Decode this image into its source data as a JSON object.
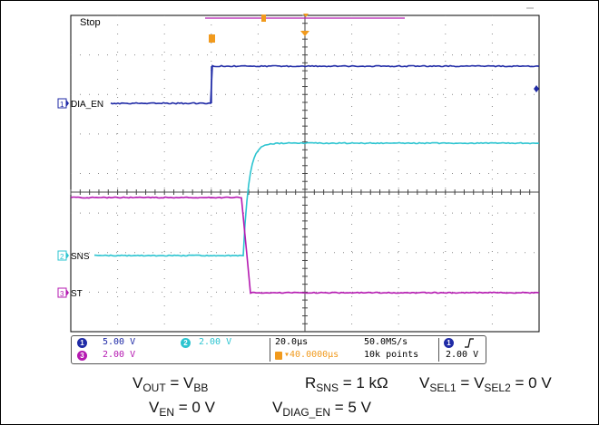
{
  "status": {
    "run_state": "Stop"
  },
  "colors": {
    "ch1": "#1f2aa6",
    "ch2": "#2cc4d0",
    "ch3": "#b51ab1",
    "trigger": "#f19a1d",
    "grid": "#8a8a8a"
  },
  "channels": [
    {
      "num": "1",
      "label": "DIA_EN",
      "scale": "5.00 V",
      "color": "#1f2aa6"
    },
    {
      "num": "2",
      "label": "SNS",
      "scale": "2.00 V",
      "color": "#2cc4d0"
    },
    {
      "num": "3",
      "label": "ST",
      "scale": "2.00 V",
      "color": "#b51ab1"
    }
  ],
  "timebase": {
    "per_div": "20.0µs",
    "sample_rate": "50.0MS/s",
    "delay": "▾40.0000µs",
    "record": "10k points"
  },
  "trigger": {
    "source": "1",
    "slope_icon": "rising-edge",
    "level": "2.00 V"
  },
  "notes": {
    "vout": {
      "main": "V",
      "sub": "OUT",
      "eq": " = V",
      "sub2": "BB"
    },
    "rsns": {
      "main": "R",
      "sub": "SNS",
      "eq": " = 1 kΩ"
    },
    "vsel": {
      "main": "V",
      "sub": "SEL1",
      "eq": " = V",
      "sub2": "SEL2",
      "tail": " = 0 V"
    },
    "ven": {
      "main": "V",
      "sub": "EN",
      "eq": " = 0 V"
    },
    "vdiag": {
      "main": "V",
      "sub": "DIAG_EN",
      "eq": " = 5 V"
    }
  }
}
